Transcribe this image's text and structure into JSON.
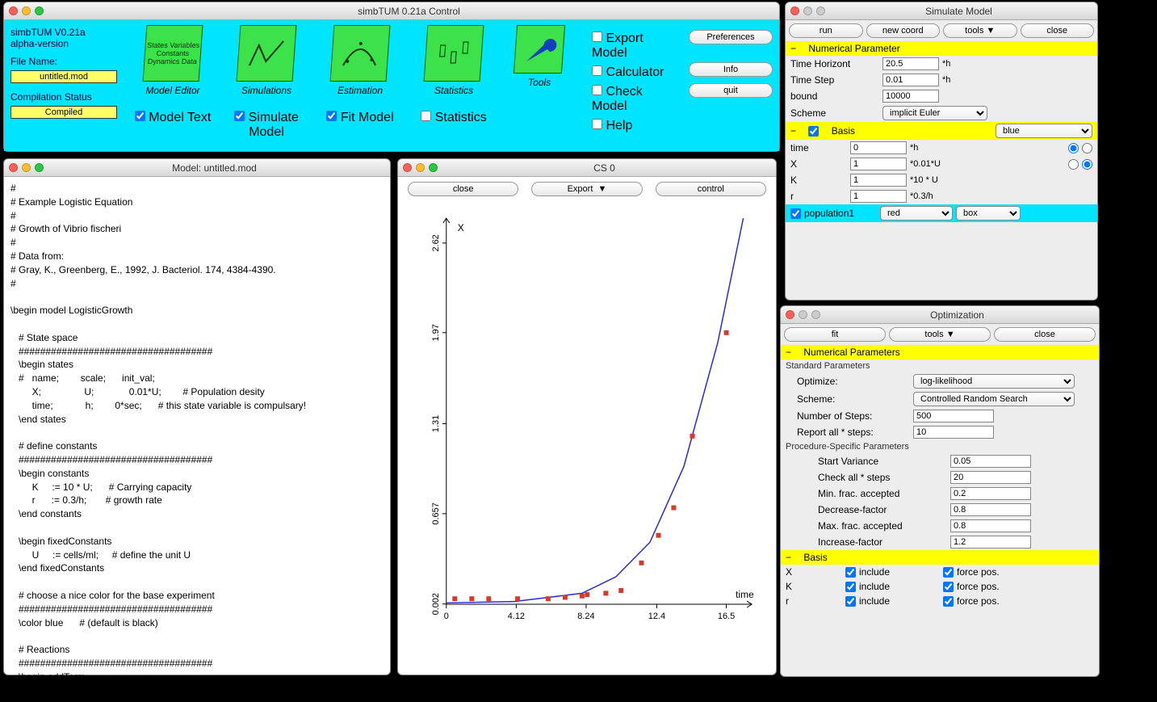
{
  "control": {
    "title": "simbTUM 0.21a  Control",
    "version_line1": "simbTUM V0.21a",
    "version_line2": "alpha-version",
    "filename_label": "File Name:",
    "filename": "untitled.mod",
    "compstat_label": "Compilation Status",
    "compiled": "Compiled",
    "icons": [
      {
        "name": "Model Editor",
        "sub": "States Variables Constants Dynamics Data",
        "chk": "Model Text",
        "checked": true
      },
      {
        "name": "Simulations",
        "chk": "Simulate Model",
        "checked": true
      },
      {
        "name": "Estimation",
        "chk": "Fit Model",
        "checked": true
      },
      {
        "name": "Statistics",
        "chk": "Statistics",
        "checked": false
      },
      {
        "name": "Tools",
        "chk": "",
        "checked": null
      }
    ],
    "right_checks": [
      "Export Model",
      "Calculator",
      "Check Model",
      "Help"
    ],
    "right_buttons": [
      "Preferences",
      "Info",
      "quit"
    ]
  },
  "model_window": {
    "title": "Model: untitled.mod",
    "text": "#\n# Example Logistic Equation\n#\n# Growth of Vibrio fischeri\n#\n# Data from:\n# Gray, K., Greenberg, E., 1992, J. Bacteriol. 174, 4384-4390.\n#\n\n\\begin model LogisticGrowth\n\n   # State space\n   ####################################\n   \\begin states\n   #   name;        scale;      init_val;\n        X;                U;             0.01*U;        # Population desity\n        time;            h;        0*sec;      # this state variable is compulsary!\n   \\end states\n\n   # define constants\n   ####################################\n   \\begin constants\n        K     := 10 * U;      # Carrying capacity\n        r      := 0.3/h;       # growth rate\n   \\end constants\n\n   \\begin fixedConstants\n        U     := cells/ml;     # define the unit U\n   \\end fixedConstants\n\n   # choose a nice color for the base experiment\n   ####################################\n   \\color blue      # (default is black)\n\n   # Reactions\n   ####################################\n   \\begin addTerm\n        # this is the way how to implement the logistic growth"
  },
  "cs0": {
    "title": "CS 0",
    "buttons": {
      "close": "close",
      "export": "Export",
      "control": "control"
    },
    "chart": {
      "type": "line-scatter",
      "xlabel": "time",
      "ylabel": "X",
      "xlim": [
        0,
        18
      ],
      "ylim": [
        0,
        2.8
      ],
      "xticks": [
        0,
        4.12,
        8.24,
        12.4,
        16.5
      ],
      "yticks": [
        0.002,
        0.657,
        1.31,
        1.97,
        2.62
      ],
      "line_color": "#2a2ad8",
      "point_color": "#d83a2a",
      "background": "#ffffff",
      "points": [
        [
          0.5,
          0.04
        ],
        [
          1.5,
          0.04
        ],
        [
          2.5,
          0.04
        ],
        [
          4.2,
          0.04
        ],
        [
          6.0,
          0.04
        ],
        [
          7.0,
          0.05
        ],
        [
          8.0,
          0.06
        ],
        [
          8.3,
          0.07
        ],
        [
          9.4,
          0.08
        ],
        [
          10.3,
          0.1
        ],
        [
          11.5,
          0.3
        ],
        [
          12.5,
          0.5
        ],
        [
          13.4,
          0.7
        ],
        [
          14.5,
          1.22
        ],
        [
          16.5,
          1.97
        ]
      ],
      "line": [
        [
          0,
          0.01
        ],
        [
          4,
          0.02
        ],
        [
          8,
          0.08
        ],
        [
          10,
          0.2
        ],
        [
          12,
          0.45
        ],
        [
          14,
          1.0
        ],
        [
          16,
          1.9
        ],
        [
          17,
          2.5
        ],
        [
          17.5,
          2.8
        ]
      ]
    }
  },
  "simulate": {
    "title": "Simulate Model",
    "buttons": {
      "run": "run",
      "newcoord": "new coord",
      "tools": "tools",
      "close": "close"
    },
    "num_param_hdr": "Numerical Parameter",
    "params": [
      {
        "label": "Time Horizont",
        "val": "20.5",
        "unit": "*h"
      },
      {
        "label": "Time Step",
        "val": "0.01",
        "unit": "*h"
      },
      {
        "label": "bound",
        "val": "10000",
        "unit": ""
      },
      {
        "label": "Scheme",
        "val": "implicit Euler",
        "unit": "",
        "select": true
      }
    ],
    "basis_hdr": "Basis",
    "basis_color": "blue",
    "basis_rows": [
      {
        "label": "time",
        "val": "0",
        "unit": "*h",
        "radio": 1
      },
      {
        "label": "X",
        "val": "1",
        "unit": "*0.01*U",
        "radio": 2
      },
      {
        "label": "K",
        "val": "1",
        "unit": "*10 * U"
      },
      {
        "label": "r",
        "val": "1",
        "unit": "*0.3/h"
      }
    ],
    "pop_row": {
      "chk": "population1",
      "color": "red",
      "style": "box"
    }
  },
  "optimization": {
    "title": "Optimization",
    "buttons": {
      "fit": "fit",
      "tools": "tools",
      "close": "close"
    },
    "num_hdr": "Numerical Parameters",
    "std_label": "Standard Parameters",
    "std": [
      {
        "label": "Optimize:",
        "val": "log-likelihood",
        "select": true
      },
      {
        "label": "Scheme:",
        "val": "Controlled Random Search",
        "select": true
      },
      {
        "label": "Number of Steps:",
        "val": "500"
      },
      {
        "label": "Report all * steps:",
        "val": "10"
      }
    ],
    "proc_label": "Procedure-Specific Parameters",
    "proc": [
      {
        "label": "Start Variance",
        "val": "0.05"
      },
      {
        "label": "Check all * steps",
        "val": "20"
      },
      {
        "label": "Min. frac. accepted",
        "val": "0.2"
      },
      {
        "label": "Decrease-factor",
        "val": "0.8"
      },
      {
        "label": "Max. frac. accepted",
        "val": "0.8"
      },
      {
        "label": "Increase-factor",
        "val": "1.2"
      }
    ],
    "basis_hdr": "Basis",
    "basis": [
      {
        "label": "X",
        "inc": "include",
        "force": "force pos."
      },
      {
        "label": "K",
        "inc": "include",
        "force": "force pos."
      },
      {
        "label": "r",
        "inc": "include",
        "force": "force pos."
      }
    ]
  }
}
